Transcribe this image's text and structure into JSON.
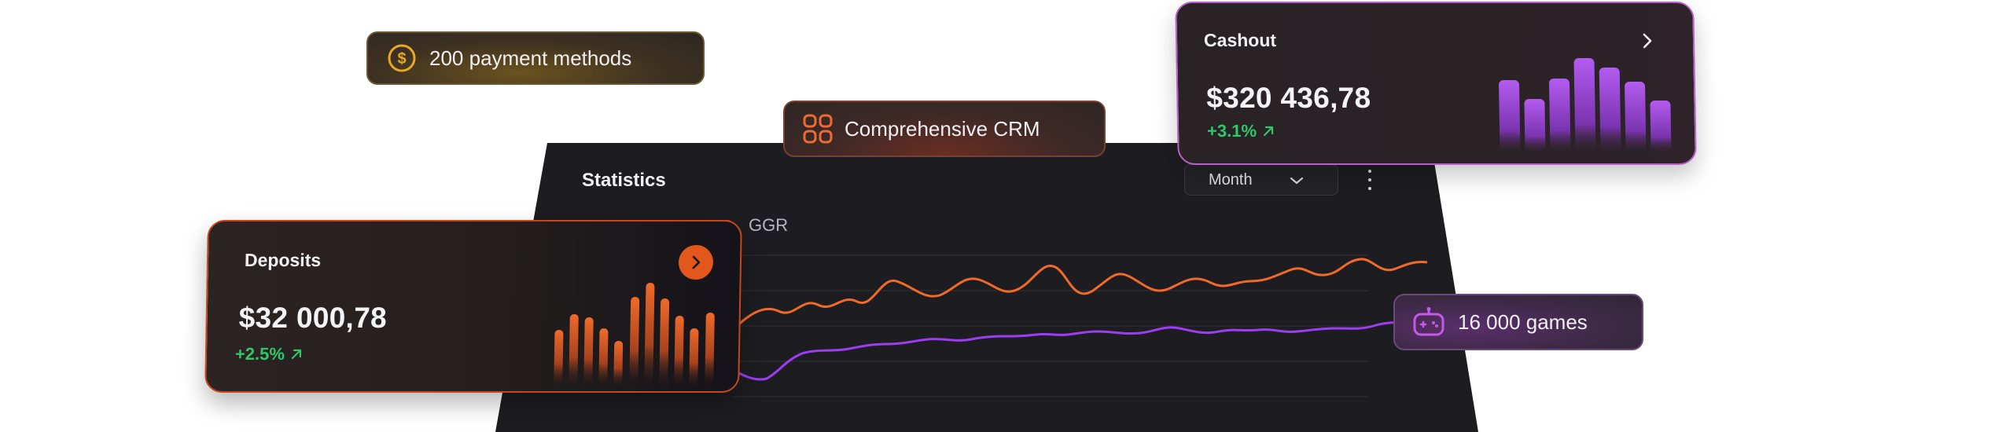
{
  "statistics": {
    "title": "Statistics",
    "period_select": "Month",
    "legend": "GGR",
    "series": [
      {
        "color": "#f06a2a"
      },
      {
        "color": "#9b3df0"
      }
    ]
  },
  "deposits": {
    "title": "Deposits",
    "amount": "$32 000,78",
    "change": "+2.5%",
    "accent": "#e2571c"
  },
  "cashout": {
    "title": "Cashout",
    "amount": "$320 436,78",
    "change": "+3.1%",
    "accent": "#a64fe0"
  },
  "pills": {
    "payments": "200 payment methods",
    "crm": "Comprehensive CRM",
    "games": "16 000 games"
  },
  "icons": {
    "payments": "dollar-coin-icon",
    "crm": "grid-apps-icon",
    "games": "gamepad-icon",
    "arrow": "chevron-right-icon",
    "trend": "arrow-up-right-icon"
  },
  "colors": {
    "positive": "#2ec76a",
    "panel": "#1d1c20"
  }
}
